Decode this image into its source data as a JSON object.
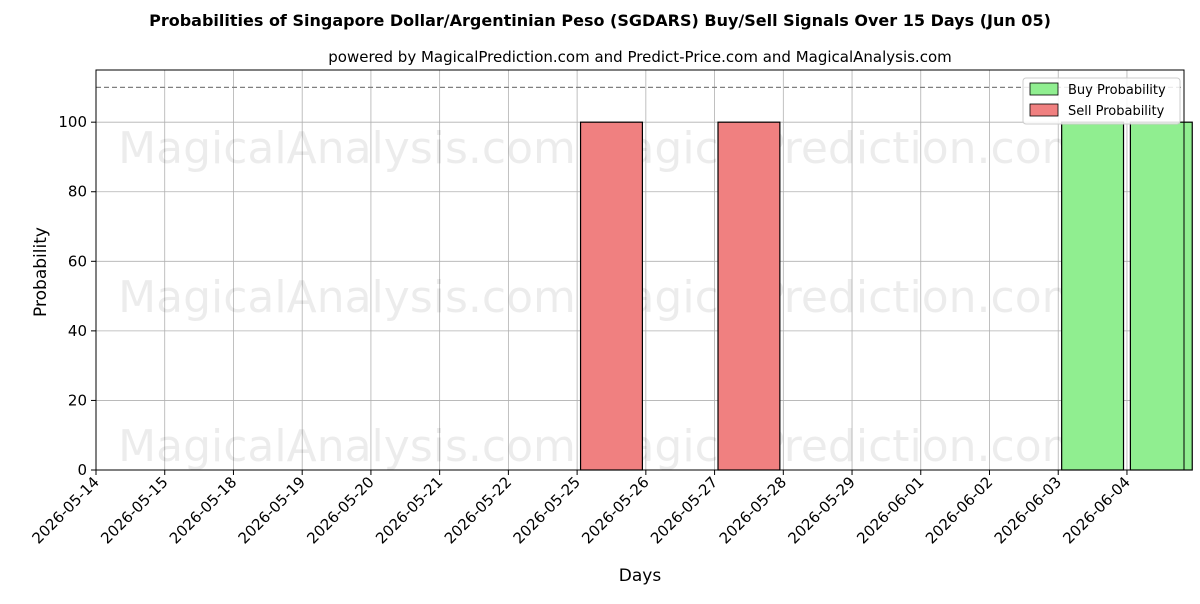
{
  "chart_data": {
    "type": "bar",
    "title": "Probabilities of Singapore Dollar/Argentinian Peso (SGDARS) Buy/Sell Signals Over 15 Days (Jun 05)",
    "subtitle": "powered by MagicalPrediction.com and Predict-Price.com and MagicalAnalysis.com",
    "xlabel": "Days",
    "ylabel": "Probability",
    "ylim": [
      0,
      115
    ],
    "yticks": [
      0,
      20,
      40,
      60,
      80,
      100
    ],
    "threshold_line": 110,
    "grid": true,
    "legend_position": "top-right",
    "categories": [
      "2026-05-14",
      "2026-05-15",
      "2026-05-18",
      "2026-05-19",
      "2026-05-20",
      "2026-05-21",
      "2026-05-22",
      "2026-05-25",
      "2026-05-26",
      "2026-05-27",
      "2026-05-28",
      "2026-05-29",
      "2026-06-01",
      "2026-06-02",
      "2026-06-03",
      "2026-06-04"
    ],
    "series": [
      {
        "name": "Buy Probability",
        "color": "#90ee90",
        "points": [
          {
            "x": "2026-06-03",
            "value": 100
          },
          {
            "x": "2026-06-04",
            "value": 100
          }
        ]
      },
      {
        "name": "Sell Probability",
        "color": "#f08080",
        "points": [
          {
            "x": "2026-05-25",
            "value": 100
          },
          {
            "x": "2026-05-27",
            "value": 100
          }
        ]
      }
    ]
  },
  "watermarks": [
    "MagicalAnalysis.com",
    "MagicalPrediction.com"
  ]
}
